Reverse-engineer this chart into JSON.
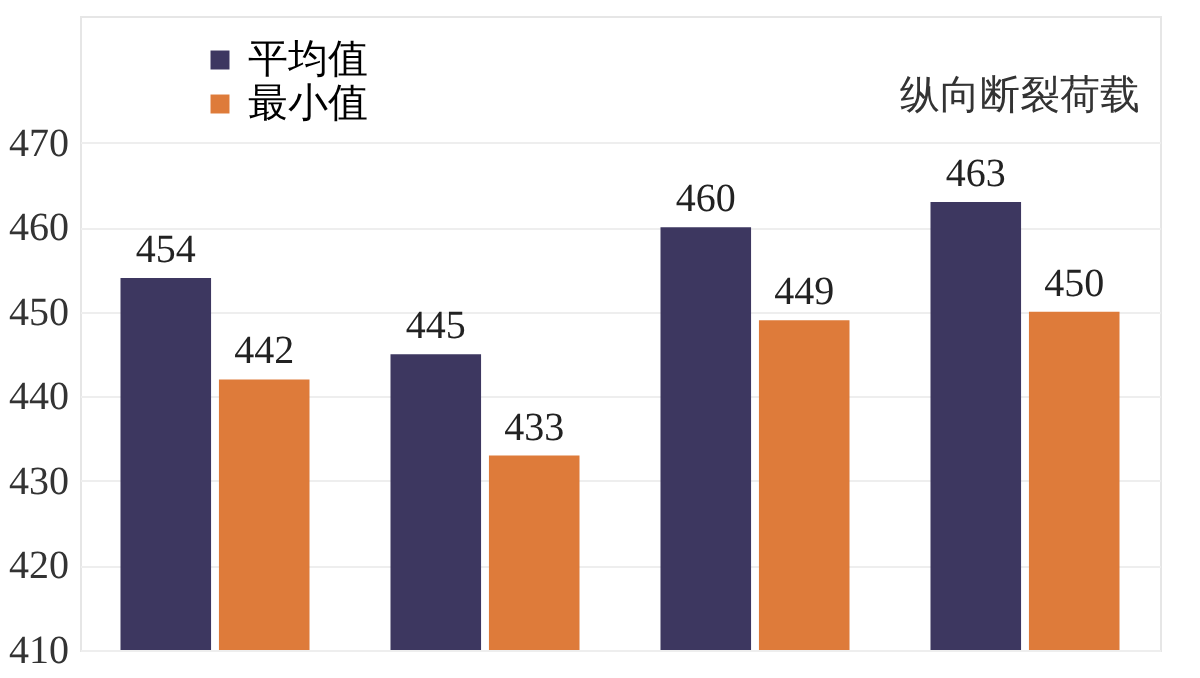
{
  "chart_data": {
    "type": "bar",
    "title": "纵向断裂荷载",
    "categories": [
      null,
      null,
      null,
      null
    ],
    "series": [
      {
        "name": "平均值",
        "color": "#3d3760",
        "values": [
          454,
          445,
          460,
          463
        ]
      },
      {
        "name": "最小值",
        "color": "#de7b3a",
        "values": [
          442,
          433,
          449,
          450
        ]
      }
    ],
    "ylim": [
      410,
      485
    ],
    "yticks": [
      410,
      420,
      430,
      440,
      450,
      460,
      470
    ],
    "grid": "y",
    "legend": "top left",
    "data_labels": true
  }
}
